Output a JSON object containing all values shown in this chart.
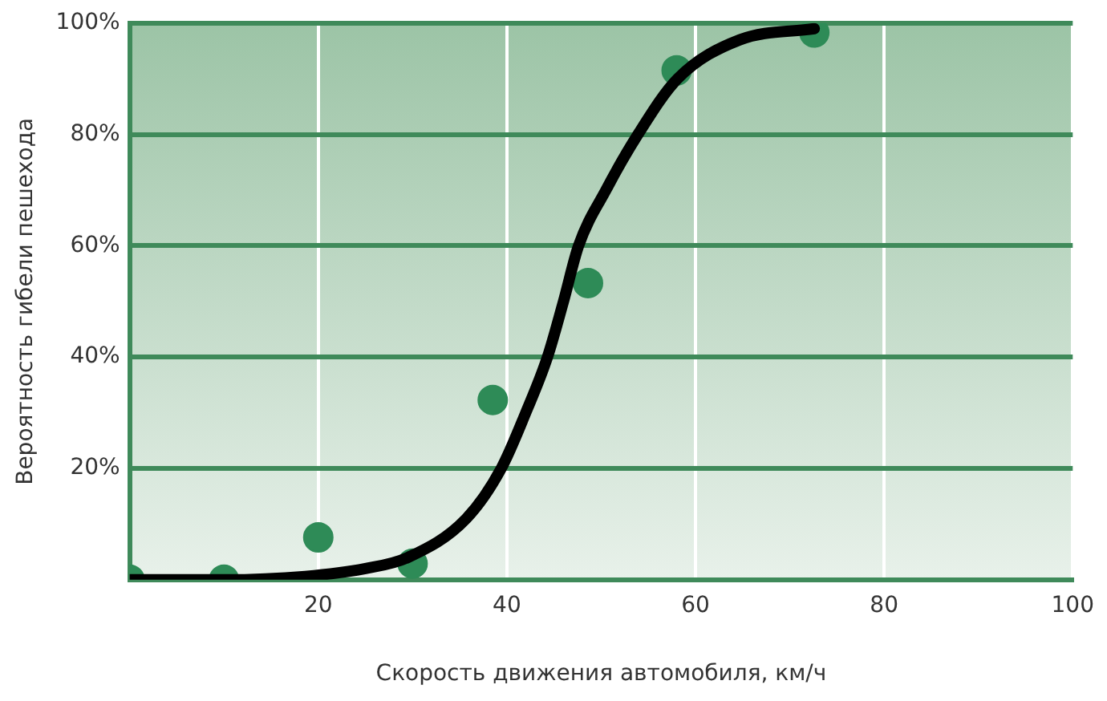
{
  "chart_data": {
    "type": "scatter",
    "xlabel": "Скорость движения автомобиля, км/ч",
    "ylabel": "Вероятность гибели пешехода",
    "xlim": [
      0,
      100
    ],
    "ylim": [
      0,
      100
    ],
    "xticks": [
      20,
      40,
      60,
      80,
      100
    ],
    "yticks": [
      {
        "value": 20,
        "label": "20%"
      },
      {
        "value": 40,
        "label": "40%"
      },
      {
        "value": 60,
        "label": "60%"
      },
      {
        "value": 80,
        "label": "80%"
      },
      {
        "value": 100,
        "label": "100%"
      }
    ],
    "grid": true,
    "legend": false,
    "series": [
      {
        "type": "line",
        "color": "#000000",
        "marker": "none",
        "line_style": "solid",
        "x": [
          0,
          10,
          18.6,
          25,
          29.5,
          35.7,
          39.4,
          42,
          44.3,
          46,
          47.6,
          50.5,
          53.9,
          58.1,
          64.7,
          72.6
        ],
        "values": [
          0,
          0,
          0.6,
          2,
          4,
          11,
          20,
          30,
          40,
          50,
          60,
          70,
          80,
          90,
          97,
          99
        ]
      },
      {
        "color": "#2e8b57",
        "marker": "circle",
        "x": [
          0,
          10,
          20,
          30,
          38.5,
          48.6,
          58,
          72.6
        ],
        "values": [
          0,
          0,
          7.6,
          2.9,
          32.3,
          53.3,
          91.5,
          98.3
        ]
      }
    ]
  }
}
